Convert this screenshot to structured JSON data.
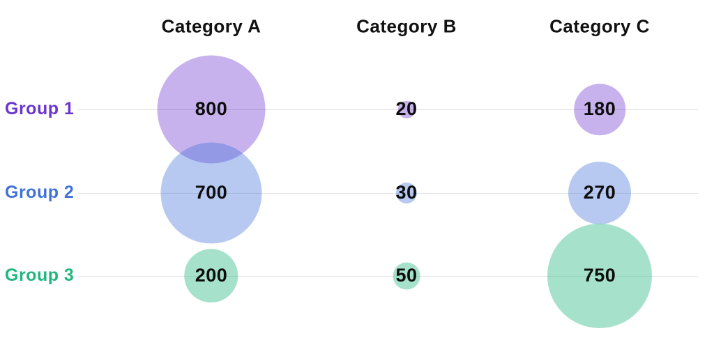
{
  "page": {
    "background": "#ffffff"
  },
  "chart_data": {
    "type": "scatter",
    "subtype": "bubble-matrix",
    "title": "",
    "categories": [
      "Category A",
      "Category B",
      "Category C"
    ],
    "series": [
      {
        "name": "Group 1",
        "label_color": "#6b35cf",
        "bubble_color": "rgba(107,53,207,0.38)",
        "values": [
          800,
          20,
          180
        ]
      },
      {
        "name": "Group 2",
        "label_color": "#4272d8",
        "bubble_color": "rgba(66,114,216,0.38)",
        "values": [
          700,
          30,
          270
        ]
      },
      {
        "name": "Group 3",
        "label_color": "#21b67e",
        "bubble_color": "rgba(33,182,126,0.40)",
        "values": [
          200,
          50,
          750
        ]
      }
    ],
    "value_labels_shown": true,
    "grid": {
      "shown": true,
      "color": "#e0e0e0"
    },
    "legend_position": "none",
    "size_encoding": "radius proportional to sqrt(value)"
  }
}
